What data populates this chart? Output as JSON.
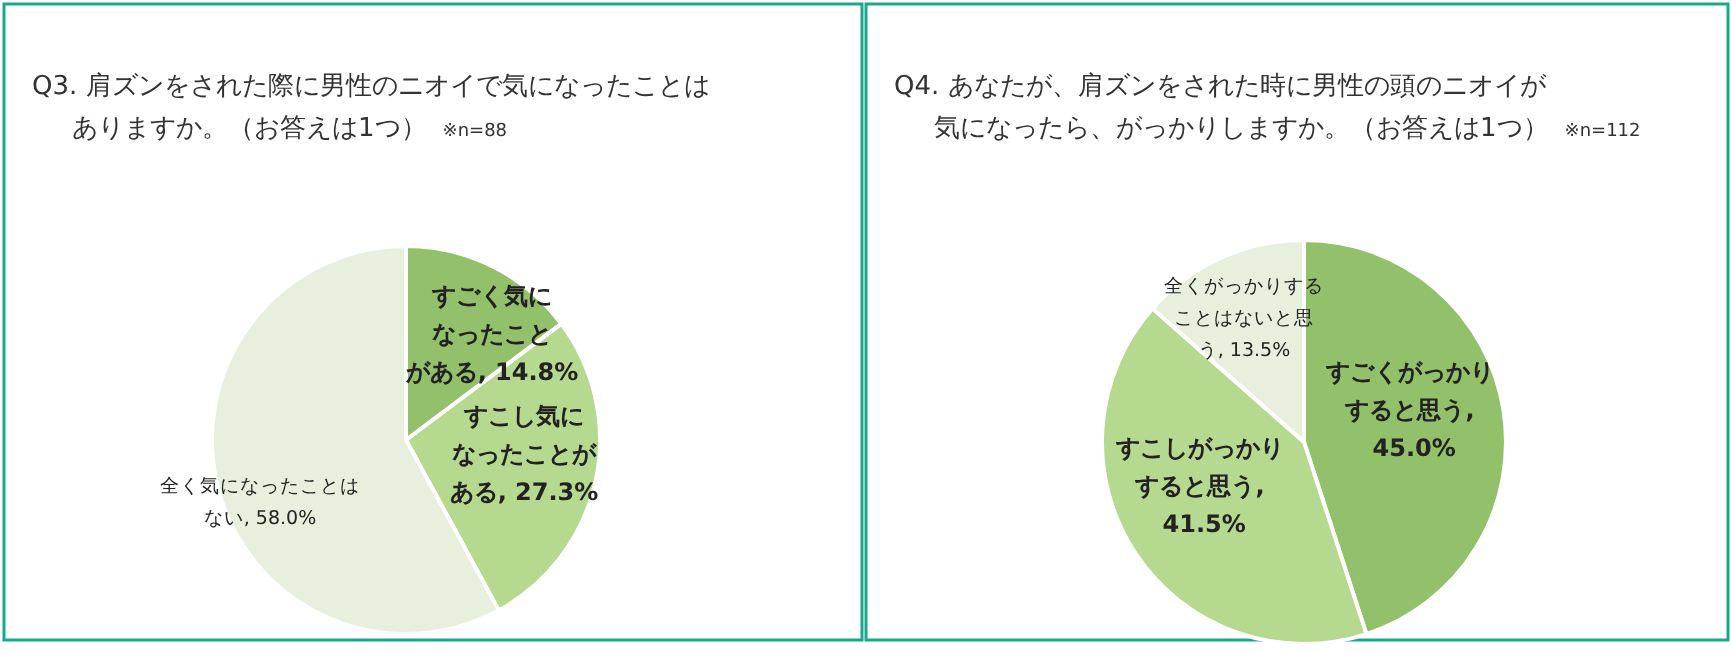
{
  "chart_data": [
    {
      "type": "pie",
      "title": "Q3. 肩ズンをされた際に男性のニオイで気になったことはありますか。（お答えは1つ）",
      "subtitle": "※n=88",
      "categories": [
        "すごく気になったことがある",
        "すこし気になったことがある",
        "全く気になったことはない"
      ],
      "values": [
        14.8,
        27.3,
        58.0
      ],
      "value_labels": [
        ", 14.8%",
        ", 27.3%",
        ", 58.0%"
      ],
      "colors": [
        "#93c06a",
        "#b5d98f",
        "#e6f0dc"
      ],
      "legend": false
    },
    {
      "type": "pie",
      "title": "Q4. あなたが、肩ズンをされた時に男性の頭のニオイが気になったら、がっかりしますか。（お答えは1つ）",
      "subtitle": "※n=112",
      "categories": [
        "すごくがっかりすると思う",
        "すこしがっかりすると思う",
        "全くがっかりすることはないと思う"
      ],
      "values": [
        45.0,
        41.5,
        13.5
      ],
      "value_labels": [
        ", 45.0%",
        ", 41.5%",
        ", 13.5%"
      ],
      "colors": [
        "#93c06a",
        "#b5d98f",
        "#e6f0dc"
      ],
      "legend": false
    }
  ]
}
